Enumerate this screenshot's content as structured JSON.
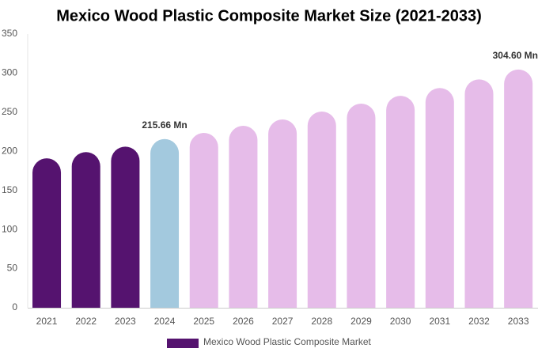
{
  "chart_data": {
    "type": "bar",
    "title": "Mexico Wood Plastic Composite Market Size (2021-2033)",
    "categories": [
      "2021",
      "2022",
      "2023",
      "2024",
      "2025",
      "2026",
      "2027",
      "2028",
      "2029",
      "2030",
      "2031",
      "2032",
      "2033"
    ],
    "series": [
      {
        "name": "Mexico Wood Plastic Composite Market",
        "color": "#55136f",
        "values": [
          191,
          199,
          206,
          215.66,
          223.5,
          232.6,
          240.7,
          250.9,
          261,
          271,
          281,
          292,
          304.6
        ],
        "value_labels": [
          null,
          null,
          null,
          "215.66 Mn",
          null,
          null,
          null,
          null,
          null,
          null,
          null,
          null,
          "304.60 Mn"
        ],
        "colors": [
          "#55136f",
          "#55136f",
          "#55136f",
          "#a3c9de",
          "#e6bce9",
          "#e6bce9",
          "#e6bce9",
          "#e6bce9",
          "#e6bce9",
          "#e6bce9",
          "#e6bce9",
          "#e6bce9",
          "#e6bce9"
        ]
      }
    ],
    "ylim": [
      0,
      350
    ],
    "yticks": [
      0,
      50,
      100,
      150,
      200,
      250,
      300,
      350
    ],
    "grid": false
  }
}
